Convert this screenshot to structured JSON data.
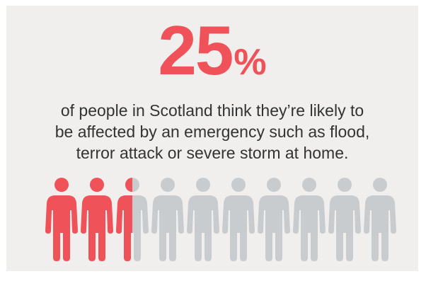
{
  "stat": {
    "number": "25",
    "unit": "%",
    "share": 0.25
  },
  "caption": {
    "line1": "of people in Scotland think they’re likely to",
    "line2": "be affected by an emergency such as flood,",
    "line3": "terror attack or severe storm at home."
  },
  "pictogram": {
    "icon": "person-icon",
    "count": 10,
    "filled": 2.5,
    "colors": {
      "highlight": "#ef5258",
      "base": "#c8cccf",
      "background": "#f0efee",
      "text": "#333333"
    }
  }
}
